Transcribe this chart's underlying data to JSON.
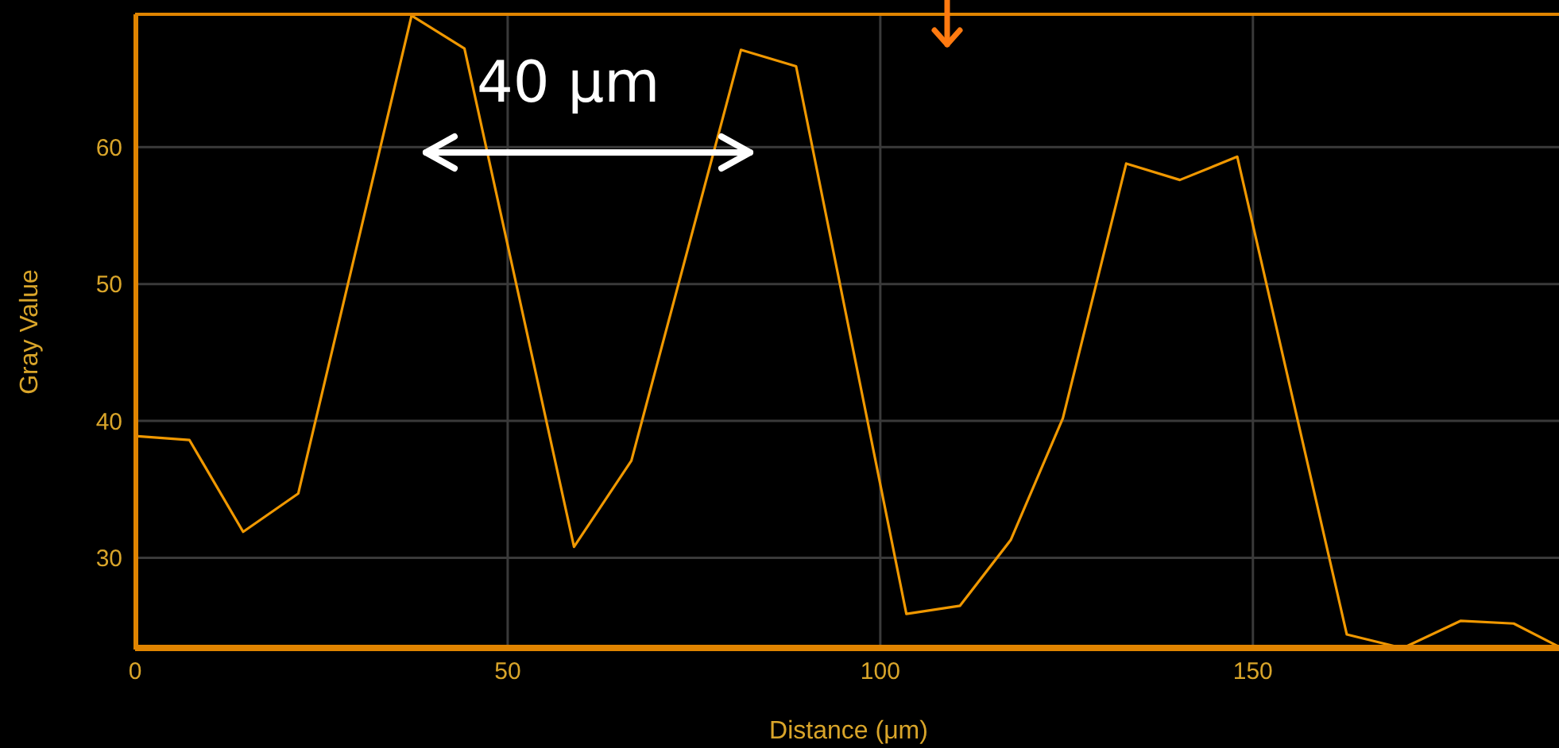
{
  "chart_data": {
    "type": "line",
    "xlabel": "Distance (μm)",
    "ylabel": "Gray Value",
    "annotations": [
      "40 μm"
    ],
    "x": [
      0,
      7.3,
      14.5,
      21.9,
      37.1,
      44.2,
      58.9,
      66.6,
      81.3,
      88.7,
      103.5,
      110.7,
      117.5,
      124.5,
      133,
      140.2,
      147.9,
      162.6,
      170.1,
      177.9,
      185,
      191.1
    ],
    "series": [
      {
        "color": "#f09800",
        "values": [
          38.9,
          38.6,
          31.9,
          34.7,
          69.6,
          67.2,
          30.8,
          37.1,
          67.1,
          65.9,
          25.9,
          26.5,
          31.3,
          40.2,
          58.8,
          57.6,
          59.3,
          24.4,
          23.4,
          25.4,
          25.2,
          23.5
        ]
      }
    ],
    "xlim": [
      0,
      191.5
    ],
    "ylim": [
      23.3,
      69.7
    ],
    "xticks": [
      0,
      50,
      100,
      150
    ],
    "yticks": [
      30,
      40,
      50,
      60
    ],
    "grid": true,
    "legend": false,
    "marker": "none",
    "line_style": "solid"
  }
}
